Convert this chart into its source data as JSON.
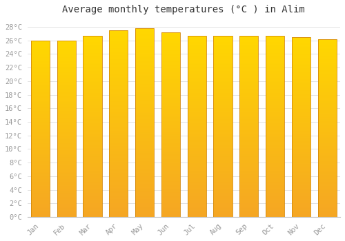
{
  "title": "Average monthly temperatures (°C ) in Alim",
  "months": [
    "Jan",
    "Feb",
    "Mar",
    "Apr",
    "May",
    "Jun",
    "Jul",
    "Aug",
    "Sep",
    "Oct",
    "Nov",
    "Dec"
  ],
  "values": [
    26.0,
    26.0,
    26.7,
    27.5,
    27.8,
    27.2,
    26.7,
    26.7,
    26.7,
    26.7,
    26.5,
    26.2
  ],
  "bar_color_bottom": "#F5A623",
  "bar_color_top": "#FFD700",
  "bar_edge_color": "#D4880A",
  "background_color": "#ffffff",
  "grid_color": "#dddddd",
  "ylim": [
    0,
    29
  ],
  "yticks": [
    0,
    2,
    4,
    6,
    8,
    10,
    12,
    14,
    16,
    18,
    20,
    22,
    24,
    26,
    28
  ],
  "title_fontsize": 10,
  "tick_fontsize": 7.5,
  "tick_color": "#999999",
  "font_family": "monospace",
  "bar_width": 0.72
}
